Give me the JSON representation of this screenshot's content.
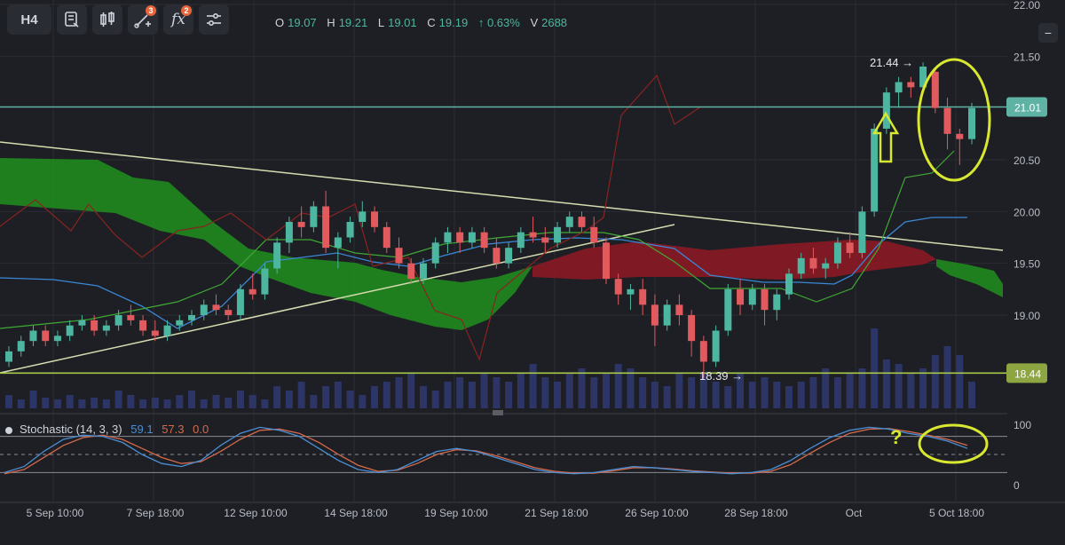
{
  "toolbar": {
    "timeframe": "H4",
    "indicator_badge": "3",
    "fx_badge": "2"
  },
  "ohlc": {
    "o_label": "O",
    "o": "19.07",
    "h_label": "H",
    "h": "19.21",
    "l_label": "L",
    "l": "19.01",
    "c_label": "C",
    "c": "19.19",
    "change": "↑ 0.63%",
    "v_label": "V",
    "v": "2688"
  },
  "stochastic_legend": {
    "name": "Stochastic (14, 3, 3)",
    "k": "59.1",
    "d": "57.3",
    "z": "0.0"
  },
  "colors": {
    "bg": "#1e1f24",
    "up": "#4db6a0",
    "down": "#e05a5e",
    "cloud_green": "#1f8a1f",
    "cloud_red": "#8a1a25",
    "accent_yellow": "#d8e830",
    "stoch_k": "#4a8fd6",
    "stoch_d": "#d46a4b"
  },
  "chart_data": {
    "type": "candlestick",
    "price_axis": {
      "ticks": [
        "22.00",
        "21.50",
        "21.01",
        "20.50",
        "20.00",
        "19.50",
        "19.00",
        "18.44"
      ],
      "range": [
        18.1,
        22.0
      ]
    },
    "stoch_axis": {
      "ticks": [
        "100",
        "0"
      ]
    },
    "x_ticks": [
      "5 Sep 10:00",
      "7 Sep 18:00",
      "12 Sep 10:00",
      "14 Sep 18:00",
      "19 Sep 10:00",
      "21 Sep 18:00",
      "26 Sep 10:00",
      "28 Sep 18:00",
      "Oct",
      "5 Oct 18:00"
    ],
    "price_labels": {
      "current": "21.01",
      "support": "18.44",
      "high_annotation": "21.44 →",
      "low_annotation": "18.39 →"
    },
    "annotation_question": "?",
    "candles": [
      [
        18.55,
        18.7,
        18.5,
        18.65
      ],
      [
        18.65,
        18.8,
        18.6,
        18.75
      ],
      [
        18.75,
        18.9,
        18.7,
        18.85
      ],
      [
        18.85,
        18.9,
        18.7,
        18.75
      ],
      [
        18.75,
        18.85,
        18.7,
        18.8
      ],
      [
        18.8,
        18.95,
        18.75,
        18.9
      ],
      [
        18.9,
        19.0,
        18.85,
        18.95
      ],
      [
        18.95,
        19.0,
        18.8,
        18.85
      ],
      [
        18.85,
        18.95,
        18.8,
        18.9
      ],
      [
        18.9,
        19.05,
        18.85,
        19.0
      ],
      [
        19.0,
        19.1,
        18.9,
        18.95
      ],
      [
        18.95,
        19.0,
        18.8,
        18.85
      ],
      [
        18.85,
        18.95,
        18.75,
        18.8
      ],
      [
        18.8,
        18.95,
        18.75,
        18.9
      ],
      [
        18.9,
        19.0,
        18.85,
        18.95
      ],
      [
        18.95,
        19.05,
        18.9,
        19.0
      ],
      [
        19.0,
        19.15,
        18.95,
        19.1
      ],
      [
        19.1,
        19.2,
        19.0,
        19.05
      ],
      [
        19.05,
        19.1,
        18.95,
        19.0
      ],
      [
        19.0,
        19.3,
        18.95,
        19.25
      ],
      [
        19.25,
        19.4,
        19.15,
        19.2
      ],
      [
        19.2,
        19.5,
        19.15,
        19.45
      ],
      [
        19.45,
        19.75,
        19.4,
        19.7
      ],
      [
        19.7,
        19.95,
        19.6,
        19.9
      ],
      [
        19.9,
        20.05,
        19.75,
        19.85
      ],
      [
        19.85,
        20.1,
        19.8,
        20.05
      ],
      [
        20.05,
        20.2,
        19.6,
        19.65
      ],
      [
        19.65,
        19.8,
        19.45,
        19.75
      ],
      [
        19.75,
        19.95,
        19.7,
        19.9
      ],
      [
        19.9,
        20.1,
        19.85,
        20.0
      ],
      [
        20.0,
        20.05,
        19.8,
        19.85
      ],
      [
        19.85,
        19.9,
        19.6,
        19.65
      ],
      [
        19.65,
        19.75,
        19.45,
        19.5
      ],
      [
        19.5,
        19.55,
        19.3,
        19.35
      ],
      [
        19.35,
        19.55,
        19.3,
        19.5
      ],
      [
        19.5,
        19.75,
        19.45,
        19.7
      ],
      [
        19.7,
        19.85,
        19.6,
        19.8
      ],
      [
        19.8,
        19.85,
        19.6,
        19.7
      ],
      [
        19.7,
        19.85,
        19.65,
        19.8
      ],
      [
        19.8,
        19.85,
        19.6,
        19.65
      ],
      [
        19.65,
        19.75,
        19.45,
        19.5
      ],
      [
        19.5,
        19.7,
        19.45,
        19.65
      ],
      [
        19.65,
        19.85,
        19.6,
        19.8
      ],
      [
        19.8,
        19.95,
        19.7,
        19.75
      ],
      [
        19.75,
        19.85,
        19.6,
        19.7
      ],
      [
        19.7,
        19.9,
        19.65,
        19.85
      ],
      [
        19.85,
        20.0,
        19.8,
        19.95
      ],
      [
        19.95,
        20.0,
        19.8,
        19.85
      ],
      [
        19.85,
        19.95,
        19.65,
        19.7
      ],
      [
        19.7,
        19.75,
        19.3,
        19.35
      ],
      [
        19.35,
        19.4,
        19.1,
        19.2
      ],
      [
        19.2,
        19.3,
        19.05,
        19.25
      ],
      [
        19.25,
        19.35,
        19.0,
        19.1
      ],
      [
        19.1,
        19.2,
        18.7,
        18.9
      ],
      [
        18.9,
        19.15,
        18.85,
        19.1
      ],
      [
        19.1,
        19.2,
        18.9,
        19.0
      ],
      [
        19.0,
        19.05,
        18.6,
        18.75
      ],
      [
        18.75,
        18.8,
        18.39,
        18.55
      ],
      [
        18.55,
        18.9,
        18.5,
        18.85
      ],
      [
        18.85,
        19.3,
        18.8,
        19.25
      ],
      [
        19.25,
        19.35,
        19.0,
        19.1
      ],
      [
        19.1,
        19.3,
        19.05,
        19.25
      ],
      [
        19.25,
        19.3,
        18.9,
        19.05
      ],
      [
        19.05,
        19.25,
        18.95,
        19.2
      ],
      [
        19.2,
        19.45,
        19.15,
        19.4
      ],
      [
        19.4,
        19.6,
        19.35,
        19.55
      ],
      [
        19.55,
        19.65,
        19.4,
        19.45
      ],
      [
        19.45,
        19.55,
        19.35,
        19.5
      ],
      [
        19.5,
        19.75,
        19.45,
        19.7
      ],
      [
        19.7,
        19.8,
        19.55,
        19.6
      ],
      [
        19.6,
        20.05,
        19.55,
        20.0
      ],
      [
        20.0,
        20.85,
        19.95,
        20.8
      ],
      [
        20.8,
        21.2,
        20.75,
        21.15
      ],
      [
        21.15,
        21.3,
        21.0,
        21.25
      ],
      [
        21.25,
        21.3,
        21.1,
        21.2
      ],
      [
        21.2,
        21.44,
        21.15,
        21.4
      ],
      [
        21.35,
        21.38,
        20.95,
        21.0
      ],
      [
        21.0,
        21.1,
        20.6,
        20.75
      ],
      [
        20.75,
        20.8,
        20.45,
        20.7
      ],
      [
        20.7,
        21.05,
        20.65,
        21.0
      ]
    ],
    "volume": [
      0.15,
      0.1,
      0.2,
      0.12,
      0.1,
      0.15,
      0.1,
      0.12,
      0.1,
      0.2,
      0.15,
      0.1,
      0.12,
      0.1,
      0.15,
      0.2,
      0.1,
      0.15,
      0.12,
      0.2,
      0.15,
      0.1,
      0.25,
      0.2,
      0.3,
      0.15,
      0.25,
      0.3,
      0.2,
      0.15,
      0.25,
      0.3,
      0.35,
      0.4,
      0.25,
      0.2,
      0.3,
      0.35,
      0.3,
      0.4,
      0.35,
      0.3,
      0.4,
      0.5,
      0.35,
      0.3,
      0.4,
      0.45,
      0.35,
      0.4,
      0.5,
      0.45,
      0.35,
      0.3,
      0.25,
      0.4,
      0.35,
      0.4,
      0.3,
      0.25,
      0.4,
      0.3,
      0.35,
      0.3,
      0.25,
      0.3,
      0.35,
      0.45,
      0.35,
      0.4,
      0.45,
      0.9,
      0.55,
      0.5,
      0.4,
      0.45,
      0.6,
      0.7,
      0.6,
      0.3
    ],
    "stochastic": {
      "k": [
        20,
        30,
        55,
        75,
        82,
        80,
        70,
        50,
        35,
        30,
        40,
        65,
        85,
        95,
        90,
        80,
        60,
        40,
        25,
        20,
        25,
        40,
        55,
        60,
        55,
        45,
        35,
        25,
        20,
        18,
        20,
        25,
        30,
        28,
        25,
        22,
        20,
        18,
        20,
        25,
        40,
        60,
        78,
        90,
        95,
        92,
        85,
        80,
        72,
        60
      ],
      "d": [
        18,
        25,
        45,
        65,
        78,
        82,
        75,
        60,
        45,
        35,
        38,
        55,
        75,
        90,
        92,
        85,
        70,
        50,
        32,
        22,
        24,
        35,
        50,
        58,
        56,
        48,
        38,
        28,
        22,
        19,
        19,
        23,
        28,
        28,
        26,
        23,
        21,
        19,
        19,
        22,
        33,
        52,
        70,
        85,
        92,
        93,
        88,
        82,
        75,
        65
      ]
    }
  }
}
